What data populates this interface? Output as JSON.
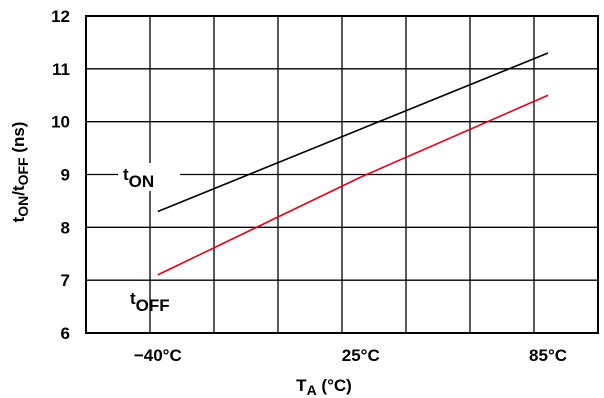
{
  "chart_data": {
    "type": "line",
    "x_categories": [
      "−40°C",
      "25°C",
      "85°C"
    ],
    "x_values": [
      -40,
      25,
      85
    ],
    "xlim": [
      -63,
      101
    ],
    "ylim": [
      6,
      12
    ],
    "y_ticks": [
      "6",
      "7",
      "8",
      "9",
      "10",
      "11",
      "12"
    ],
    "grid": true,
    "xlabel": {
      "main": "T",
      "sub": "A",
      "rest": " (°C)"
    },
    "ylabel": {
      "a": "t",
      "b": "ON",
      "c": "/t",
      "d": "OFF",
      "e": " (ns)"
    },
    "series": [
      {
        "name": "t_ON",
        "label_main": "t",
        "label_sub": "ON",
        "color": "#000000",
        "x": [
          -40,
          85
        ],
        "y": [
          8.3,
          11.3
        ]
      },
      {
        "name": "t_OFF",
        "label_main": "t",
        "label_sub": "OFF",
        "color": "#e8001c",
        "x": [
          -40,
          25,
          85
        ],
        "y": [
          7.1,
          8.95,
          10.5
        ]
      }
    ]
  }
}
